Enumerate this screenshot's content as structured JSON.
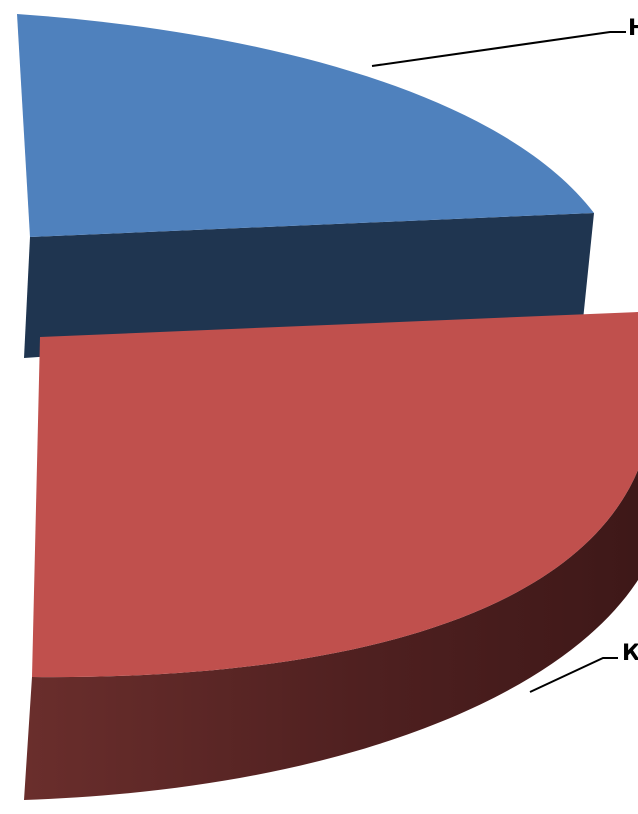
{
  "chart_data": {
    "type": "pie",
    "style": "3d-exploded",
    "title": "",
    "legend": "none",
    "slices": [
      {
        "label": "Н",
        "value": 25,
        "color": "#4F81BD",
        "side_color": "#1F3550"
      },
      {
        "label": "К",
        "value": 25,
        "color": "#C0504D",
        "side_color": "#4F2020"
      }
    ]
  }
}
